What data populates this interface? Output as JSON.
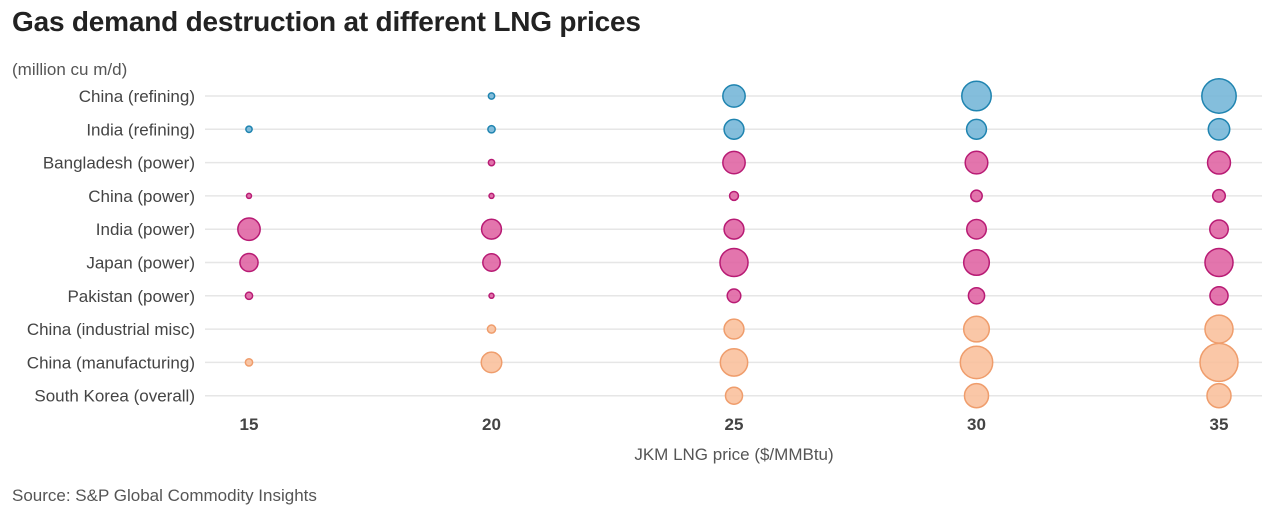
{
  "chart_data": {
    "type": "scatter",
    "title": "Gas demand destruction at different LNG prices",
    "unit_label": "(million cu m/d)",
    "xlabel": "JKM LNG price ($/MMBtu)",
    "x": [
      15,
      20,
      25,
      30,
      35
    ],
    "categories": [
      "China (refining)",
      "India (refining)",
      "Bangladesh (power)",
      "China (power)",
      "India (power)",
      "Japan (power)",
      "Pakistan (power)",
      "China (industrial misc)",
      "China (manufacturing)",
      "South Korea (overall)"
    ],
    "groups": [
      "refining",
      "refining",
      "power",
      "power",
      "power",
      "power",
      "power",
      "industrial",
      "industrial",
      "industrial"
    ],
    "colors": {
      "refining": {
        "fill": "#6fb3d6",
        "stroke": "#1f84b0"
      },
      "power": {
        "fill": "#de5d9f",
        "stroke": "#b81b74"
      },
      "industrial": {
        "fill": "#f9bd98",
        "stroke": "#ef9d6c"
      }
    },
    "values": [
      [
        0,
        0.3,
        3.8,
        6.6,
        9.0
      ],
      [
        0.3,
        0.4,
        3.0,
        3.0,
        3.5
      ],
      [
        0,
        0.3,
        3.8,
        3.9,
        4.0
      ],
      [
        0.1,
        0.1,
        0.6,
        1.0,
        1.2
      ],
      [
        3.8,
        3.0,
        3.0,
        2.9,
        2.6
      ],
      [
        2.5,
        2.3,
        6.0,
        5.0,
        6.0
      ],
      [
        0.4,
        0.1,
        1.4,
        2.0,
        2.5
      ],
      [
        0,
        0.5,
        3.0,
        5.0,
        6.0
      ],
      [
        0.4,
        3.2,
        5.7,
        8.0,
        11.0
      ],
      [
        0,
        0,
        2.2,
        4.4,
        4.4
      ]
    ],
    "source": "Source: S&P Global Commodity Insights"
  }
}
